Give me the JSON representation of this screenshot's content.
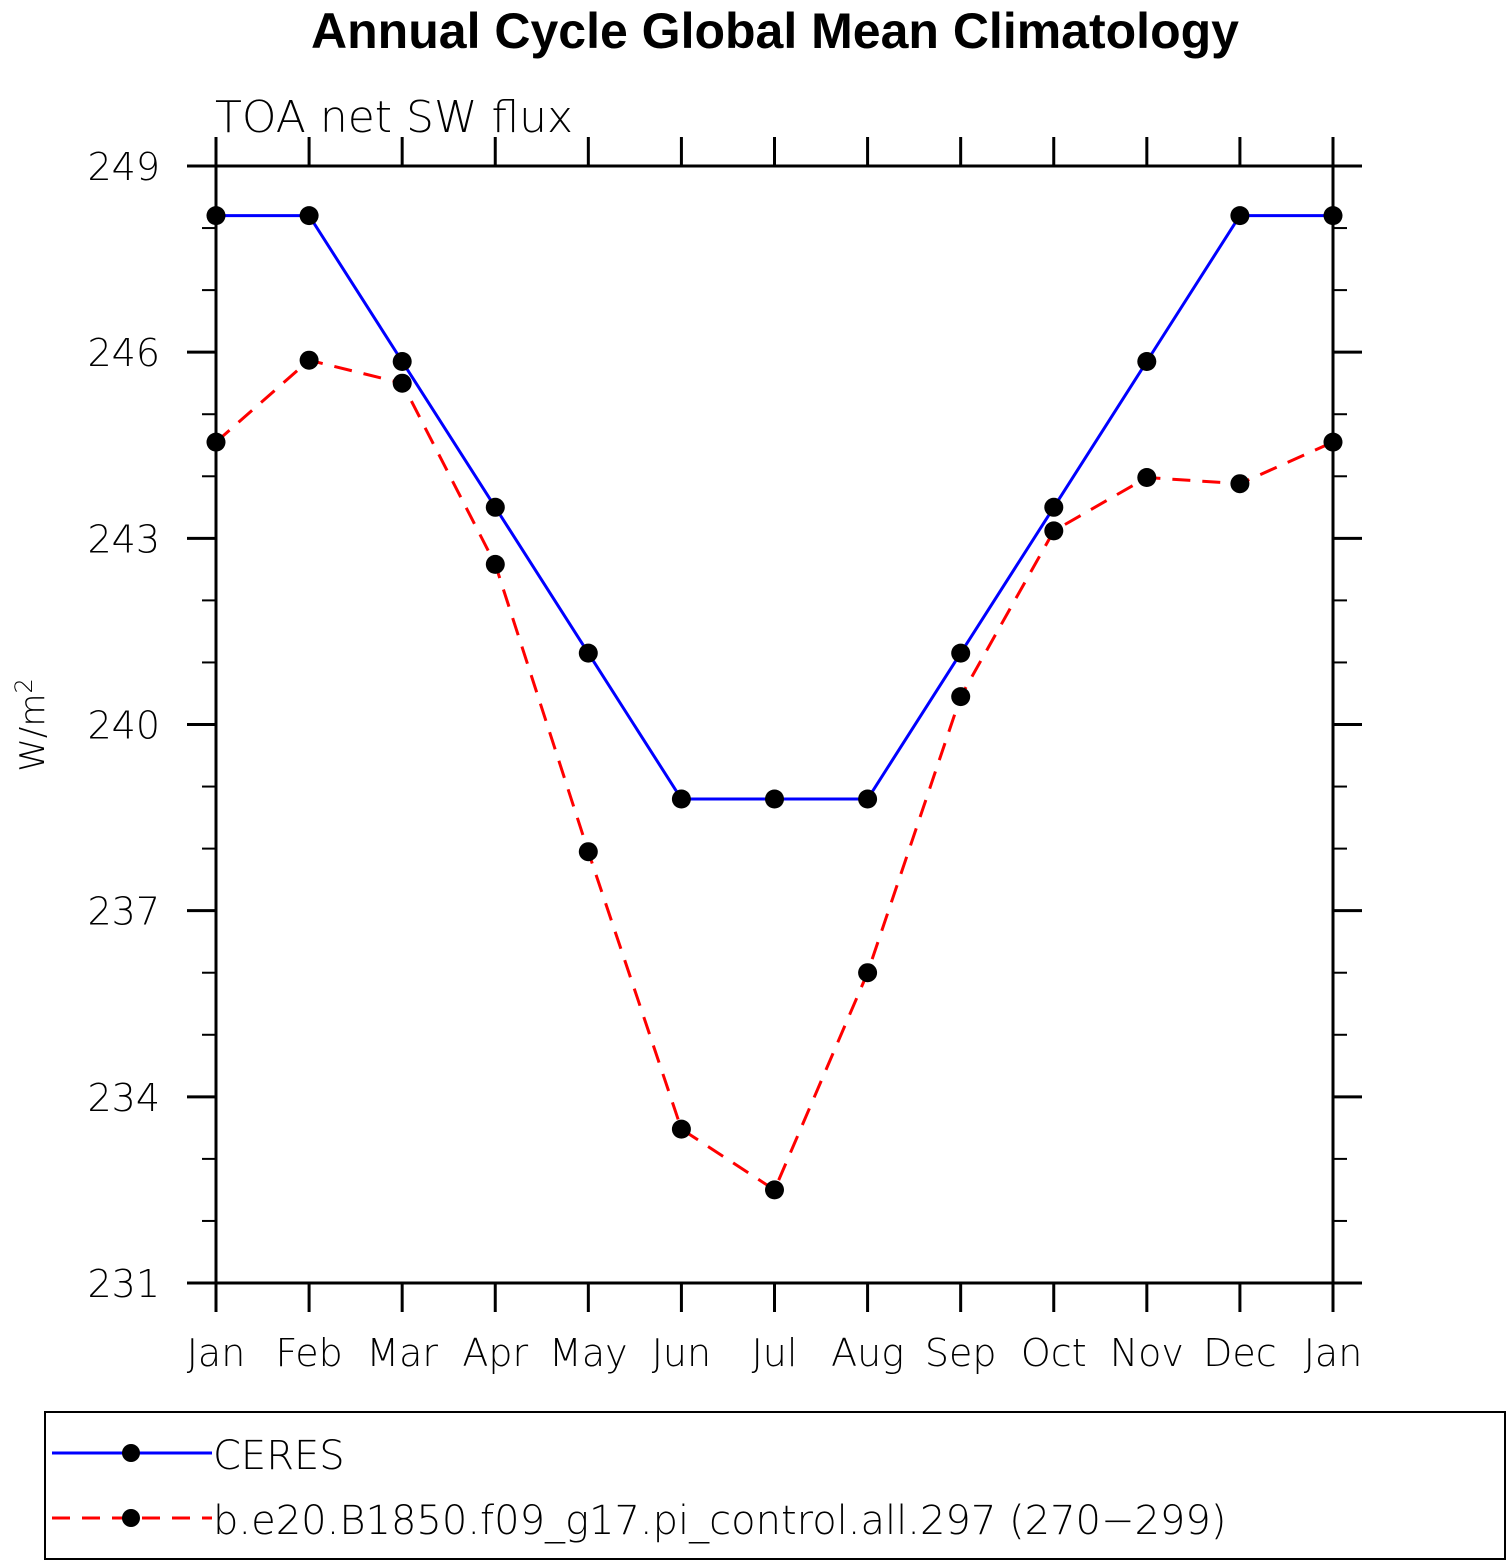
{
  "chart_data": {
    "type": "line",
    "title": "Annual Cycle Global Mean Climatology",
    "subtitle": "TOA net SW flux",
    "xlabel": "",
    "ylabel": "W/m",
    "ylabel_sup": "2",
    "categories": [
      "Jan",
      "Feb",
      "Mar",
      "Apr",
      "May",
      "Jun",
      "Jul",
      "Aug",
      "Sep",
      "Oct",
      "Nov",
      "Dec",
      "Jan"
    ],
    "ylim": [
      231,
      249
    ],
    "yticks": [
      231,
      234,
      237,
      240,
      243,
      246,
      249
    ],
    "yticks_labels": [
      "231",
      "234",
      "237",
      "240",
      "243",
      "246",
      "249"
    ],
    "yminor_step": 1,
    "series": [
      {
        "name": "CERES",
        "color": "#0000ff",
        "dashed": false,
        "values": [
          248.2,
          248.2,
          245.85,
          243.5,
          241.15,
          238.8,
          238.8,
          238.8,
          241.15,
          243.5,
          245.85,
          248.2,
          248.2
        ]
      },
      {
        "name": "b.e20.B1850.f09_g17.pi_control.all.297 (270−299)",
        "color": "#ff0000",
        "dashed": true,
        "values": [
          244.55,
          245.87,
          245.5,
          242.58,
          237.95,
          233.48,
          232.5,
          236.0,
          240.45,
          243.12,
          243.98,
          243.88,
          244.55
        ]
      }
    ],
    "legend_position": "bottom"
  }
}
